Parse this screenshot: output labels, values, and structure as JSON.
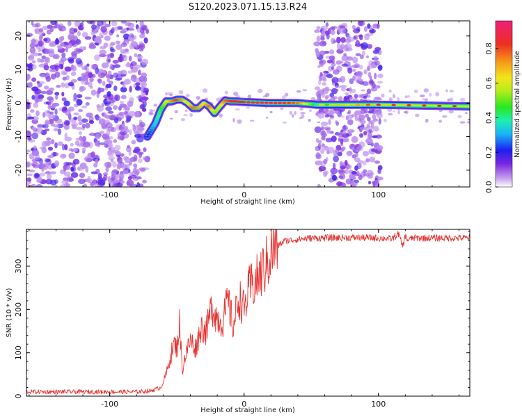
{
  "figure_title": "S120.2023.071.15.13.R24",
  "colors": {
    "snr_line": "#e8312f",
    "blob_cool": "#9d4de8",
    "background": "#ffffff"
  },
  "chart_data": [
    {
      "type": "heatmap",
      "title": "",
      "xlabel": "Height of straight line (km)",
      "ylabel": "Frequency (Hz)",
      "xlim": [
        -162,
        168
      ],
      "ylim": [
        -25,
        24.5
      ],
      "xticks": [
        "-100",
        "0",
        "100"
      ],
      "yticks": [
        "-20",
        "-10",
        "0",
        "10",
        "20"
      ],
      "colorbar": {
        "label": "Normalized spectral amplitude",
        "range": [
          0.0,
          0.96
        ],
        "ticks": [
          "0.0",
          "0.2",
          "0.4",
          "0.6",
          "0.8"
        ],
        "colormap": "rainbow (purple → blue → cyan → green → yellow → red → magenta)"
      },
      "noise_regions_km": [
        [
          -162,
          -72
        ],
        [
          54,
          102
        ]
      ],
      "signal_track": {
        "x": [
          -72,
          -66,
          -62,
          -58,
          -54,
          -50,
          -46,
          -42,
          -38,
          -34,
          -30,
          -26,
          -22,
          -18,
          -14,
          -10,
          -6,
          0,
          20,
          40,
          54,
          100,
          168
        ],
        "frequency": [
          -10,
          -6,
          -2,
          0.5,
          0.5,
          1.0,
          1.0,
          0.0,
          -1.5,
          -1.5,
          0.0,
          -1.0,
          -3.0,
          -1.0,
          0.8,
          0.5,
          0.5,
          0.3,
          0.0,
          0.0,
          -0.5,
          -0.5,
          -1.0
        ],
        "amplitude": [
          0.2,
          0.35,
          0.45,
          0.6,
          0.75,
          0.85,
          0.75,
          0.6,
          0.8,
          0.75,
          0.65,
          0.8,
          0.55,
          0.6,
          0.8,
          0.85,
          0.9,
          0.9,
          0.95,
          0.8,
          0.4,
          0.9,
          0.85
        ]
      }
    },
    {
      "type": "line",
      "title": "",
      "xlabel": "Height of straight line (km)",
      "ylabel": "SNR (10 * v/v)",
      "xlim": [
        -162,
        168
      ],
      "ylim": [
        0,
        385
      ],
      "xticks": [
        "-100",
        "0",
        "100"
      ],
      "yticks": [
        "0",
        "100",
        "200",
        "300"
      ],
      "series": [
        {
          "x": [
            -162,
            -140,
            -120,
            -100,
            -80,
            -70,
            -62,
            -58,
            -55,
            -52,
            -50,
            -48,
            -46,
            -44,
            -40,
            -36,
            -32,
            -28,
            -24,
            -20,
            -16,
            -12,
            -8,
            -4,
            0,
            4,
            8,
            12,
            16,
            20,
            24,
            30,
            40,
            50,
            60,
            80,
            100,
            110,
            115,
            118,
            120,
            122,
            125,
            140,
            168
          ],
          "values": [
            10,
            10,
            10,
            10,
            10,
            12,
            20,
            50,
            90,
            120,
            110,
            170,
            60,
            90,
            130,
            110,
            160,
            150,
            210,
            180,
            170,
            220,
            160,
            230,
            200,
            250,
            260,
            280,
            300,
            330,
            345,
            358,
            362,
            365,
            365,
            366,
            365,
            363,
            375,
            345,
            370,
            360,
            365,
            365,
            365
          ]
        }
      ]
    }
  ]
}
